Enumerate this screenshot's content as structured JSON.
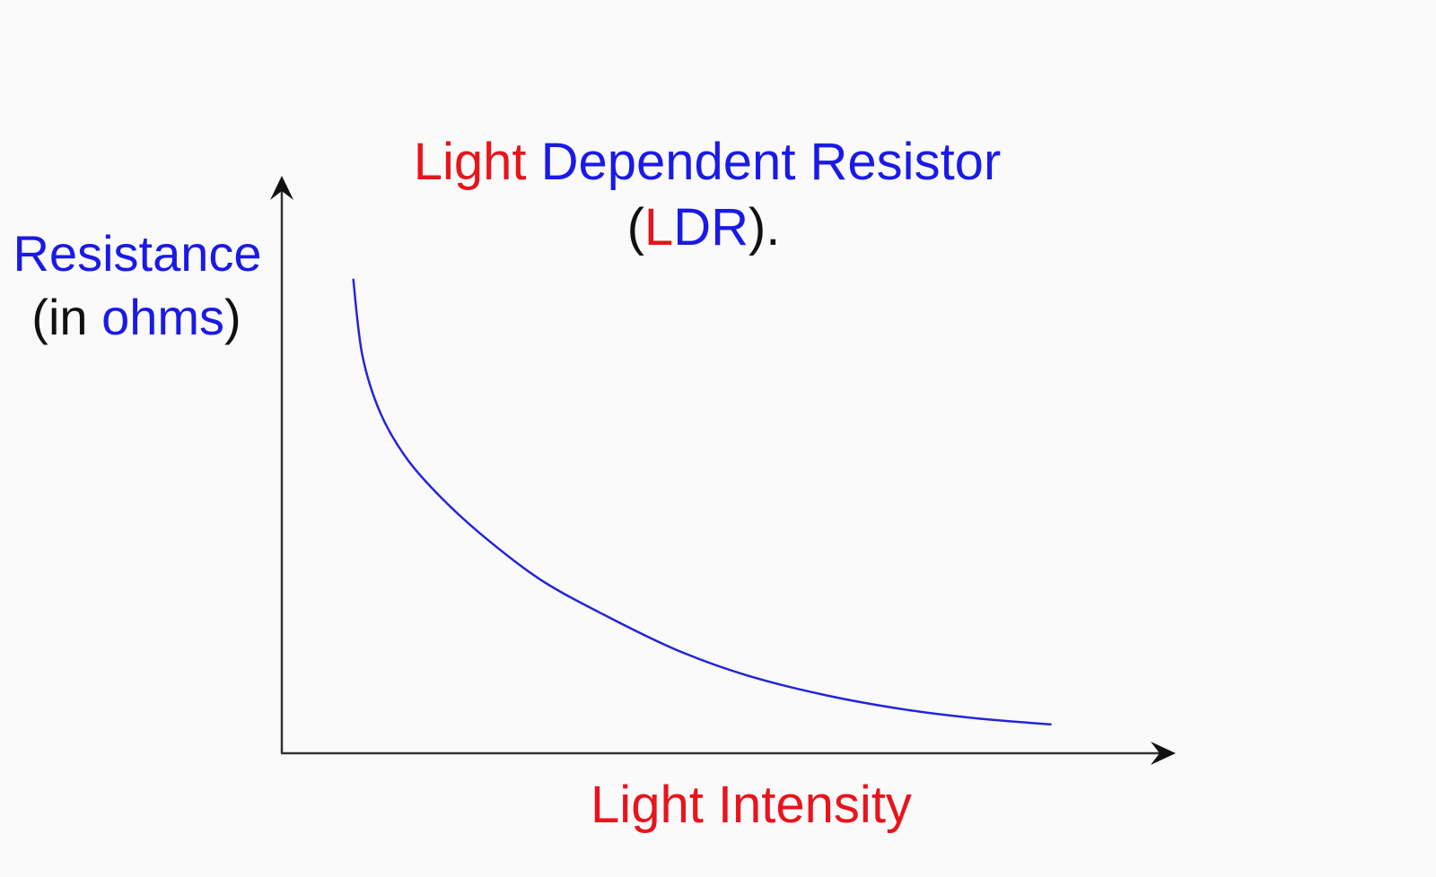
{
  "chart_data": {
    "type": "line",
    "title_parts": [
      {
        "text": "Light",
        "color": "#e8141c"
      },
      {
        "text": " Dependent Resistor",
        "color": "#1a1ae6"
      }
    ],
    "subtitle_parts": [
      {
        "text": "(",
        "color": "#111111"
      },
      {
        "text": "L",
        "color": "#e8141c"
      },
      {
        "text": "DR",
        "color": "#1a1ae6"
      },
      {
        "text": ").",
        "color": "#111111"
      }
    ],
    "ylabel_line1": {
      "text": "Resistance",
      "color": "#1a1ae6"
    },
    "ylabel_line2_parts": [
      {
        "text": "(in ",
        "color": "#111111"
      },
      {
        "text": "ohms",
        "color": "#1a1ae6"
      },
      {
        "text": ")",
        "color": "#111111"
      }
    ],
    "xlabel": {
      "text": "Light Intensity",
      "color": "#e8141c"
    },
    "xlim": [
      0,
      1
    ],
    "ylim": [
      0,
      1
    ],
    "grid": false,
    "ticks": false,
    "series": [
      {
        "color": "#2424d8",
        "x": [
          0.08,
          0.09,
          0.11,
          0.14,
          0.18,
          0.23,
          0.29,
          0.36,
          0.44,
          0.52,
          0.61,
          0.7,
          0.78,
          0.86
        ],
        "y": [
          0.82,
          0.69,
          0.59,
          0.51,
          0.44,
          0.37,
          0.3,
          0.24,
          0.18,
          0.135,
          0.1,
          0.075,
          0.06,
          0.05
        ]
      }
    ]
  }
}
